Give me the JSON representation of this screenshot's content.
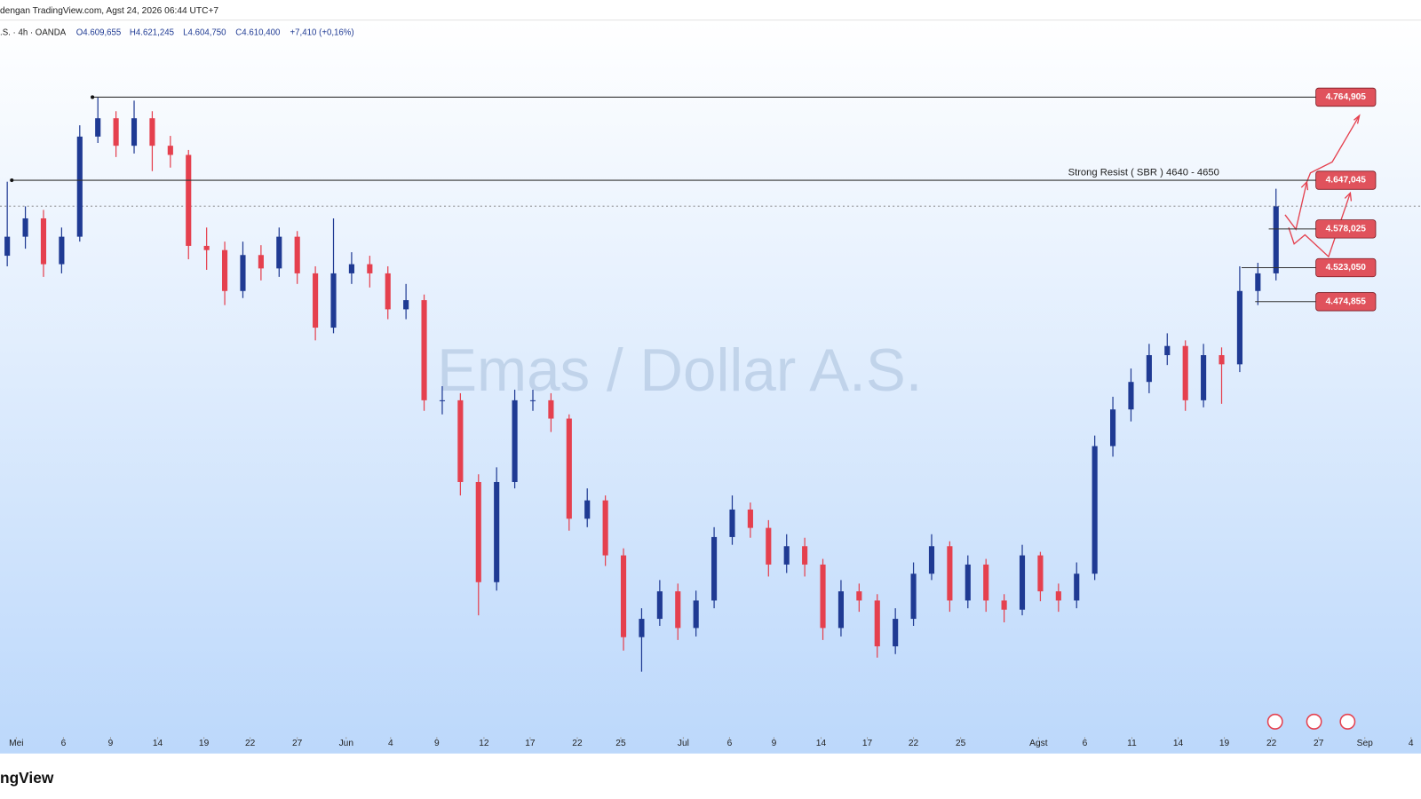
{
  "header": {
    "source": "dengan TradingView.com, Agst 24, 2026 06:44 UTC+7",
    "symbol": ".S. · 4h · OANDA",
    "open": "O4.609,655",
    "high": "H4.621,245",
    "low": "L4.604,750",
    "close": "C4.610,400",
    "change": "+7,410 (+0,16%)"
  },
  "footer": {
    "logo": "ngView"
  },
  "chart_data": {
    "type": "candlestick",
    "watermark": "Emas / Dollar A.S.",
    "annotation": "Strong Resist ( SBR ) 4640 - 4650",
    "up_color": "#1f3a93",
    "down_color": "#e5404e",
    "level_color": "#e0525c",
    "open": [
      4540,
      4567,
      4593,
      4528,
      4567,
      4709,
      4735,
      4696,
      4735,
      4696,
      4683,
      4554,
      4548,
      4490,
      4541,
      4522,
      4567,
      4515,
      4438,
      4515,
      4528,
      4515,
      4464,
      4477,
      4335,
      4335,
      4219,
      4077,
      4219,
      4335,
      4335,
      4309,
      4167,
      4193,
      4115,
      3999,
      4025,
      4064,
      4012,
      4051,
      4141,
      4180,
      4154,
      4102,
      4128,
      4102,
      4012,
      4064,
      4051,
      3986,
      4025,
      4089,
      4128,
      4051,
      4102,
      4051,
      4038,
      4115,
      4064,
      4051,
      4089,
      4270,
      4322,
      4361,
      4399,
      4412,
      4335,
      4399,
      4386,
      4490,
      4515
    ],
    "high": [
      4645,
      4610,
      4605,
      4580,
      4725,
      4765,
      4745,
      4760,
      4745,
      4710,
      4690,
      4580,
      4560,
      4560,
      4555,
      4580,
      4575,
      4525,
      4593,
      4545,
      4540,
      4525,
      4500,
      4485,
      4355,
      4345,
      4230,
      4240,
      4350,
      4350,
      4345,
      4315,
      4210,
      4200,
      4125,
      4040,
      4080,
      4075,
      4065,
      4155,
      4200,
      4190,
      4165,
      4145,
      4140,
      4110,
      4080,
      4075,
      4060,
      4040,
      4105,
      4145,
      4135,
      4115,
      4110,
      4060,
      4130,
      4120,
      4075,
      4105,
      4285,
      4340,
      4380,
      4415,
      4430,
      4420,
      4415,
      4410,
      4525,
      4530,
      4635
    ],
    "low": [
      4525,
      4550,
      4510,
      4515,
      4560,
      4700,
      4680,
      4685,
      4660,
      4665,
      4535,
      4520,
      4470,
      4480,
      4505,
      4510,
      4500,
      4420,
      4430,
      4500,
      4495,
      4450,
      4450,
      4320,
      4315,
      4200,
      4030,
      4065,
      4210,
      4320,
      4290,
      4150,
      4155,
      4100,
      3980,
      3950,
      4015,
      3995,
      4000,
      4040,
      4130,
      4140,
      4085,
      4090,
      4085,
      3995,
      4000,
      4035,
      3970,
      3975,
      4015,
      4080,
      4035,
      4040,
      4035,
      4020,
      4030,
      4050,
      4035,
      4040,
      4080,
      4255,
      4305,
      4345,
      4385,
      4320,
      4325,
      4330,
      4375,
      4470,
      4505
    ],
    "close": [
      4567,
      4593,
      4528,
      4567,
      4709,
      4735,
      4696,
      4735,
      4696,
      4683,
      4554,
      4548,
      4490,
      4541,
      4522,
      4567,
      4515,
      4438,
      4515,
      4528,
      4515,
      4464,
      4477,
      4335,
      4335,
      4219,
      4077,
      4219,
      4335,
      4335,
      4309,
      4167,
      4193,
      4115,
      3999,
      4025,
      4064,
      4012,
      4051,
      4141,
      4180,
      4154,
      4102,
      4128,
      4102,
      4012,
      4064,
      4051,
      3986,
      4025,
      4089,
      4128,
      4051,
      4102,
      4051,
      4038,
      4115,
      4064,
      4051,
      4089,
      4270,
      4322,
      4361,
      4399,
      4412,
      4335,
      4399,
      4386,
      4490,
      4515,
      4610
    ],
    "current_price": 4610.4,
    "levels": [
      {
        "value": 4764.905,
        "label": "4.764,905"
      },
      {
        "value": 4647.045,
        "label": "4.647,045"
      },
      {
        "value": 4578.025,
        "label": "4.578,025"
      },
      {
        "value": 4523.05,
        "label": "4.523,050"
      },
      {
        "value": 4474.855,
        "label": "4.474,855"
      }
    ],
    "xlim": [
      -0.4,
      78
    ],
    "ylim": [
      3834,
      4864
    ],
    "xticks": [
      {
        "value": 0.5,
        "label": "Mei"
      },
      {
        "value": 3.1,
        "label": "6"
      },
      {
        "value": 5.7,
        "label": "9"
      },
      {
        "value": 8.3,
        "label": "14"
      },
      {
        "value": 10.85,
        "label": "19"
      },
      {
        "value": 13.4,
        "label": "22"
      },
      {
        "value": 16,
        "label": "27"
      },
      {
        "value": 18.7,
        "label": "Jun"
      },
      {
        "value": 21.15,
        "label": "4"
      },
      {
        "value": 23.7,
        "label": "9"
      },
      {
        "value": 26.3,
        "label": "12"
      },
      {
        "value": 28.85,
        "label": "17"
      },
      {
        "value": 31.45,
        "label": "22"
      },
      {
        "value": 33.85,
        "label": "25"
      },
      {
        "value": 37.3,
        "label": "Jul"
      },
      {
        "value": 39.85,
        "label": "6"
      },
      {
        "value": 42.3,
        "label": "9"
      },
      {
        "value": 44.9,
        "label": "14"
      },
      {
        "value": 47.45,
        "label": "17"
      },
      {
        "value": 50,
        "label": "22"
      },
      {
        "value": 52.6,
        "label": "25"
      },
      {
        "value": 56.9,
        "label": "Agst"
      },
      {
        "value": 59.45,
        "label": "6"
      },
      {
        "value": 62.05,
        "label": "11"
      },
      {
        "value": 64.6,
        "label": "14"
      },
      {
        "value": 67.15,
        "label": "19"
      },
      {
        "value": 69.75,
        "label": "22"
      },
      {
        "value": 72.35,
        "label": "27"
      },
      {
        "value": 74.9,
        "label": "Sep"
      },
      {
        "value": 77.45,
        "label": "4"
      }
    ]
  }
}
